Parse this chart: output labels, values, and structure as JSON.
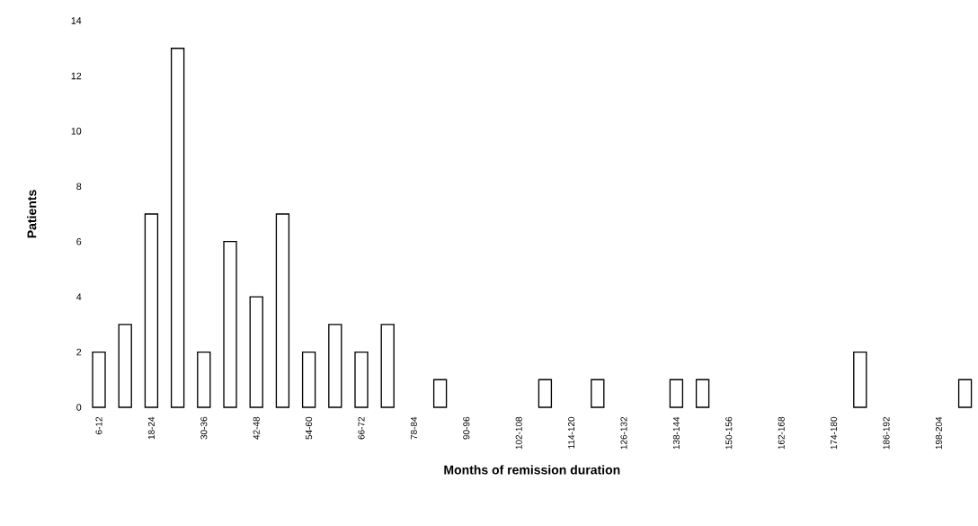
{
  "chart_data": {
    "type": "bar",
    "xlabel": "Months of remission duration",
    "ylabel": "Patients",
    "categories": [
      "6-12",
      null,
      "18-24",
      null,
      "30-36",
      null,
      "42-48",
      null,
      "54-60",
      null,
      "66-72",
      null,
      "78-84",
      null,
      "90-96",
      null,
      "102-108",
      null,
      "114-120",
      null,
      "126-132",
      null,
      "138-144",
      null,
      "150-156",
      null,
      "162-168",
      null,
      "174-180",
      null,
      "186-192",
      null,
      "198-204",
      null
    ],
    "values": [
      2,
      3,
      7,
      13,
      2,
      6,
      4,
      7,
      2,
      3,
      2,
      3,
      null,
      1,
      null,
      null,
      null,
      1,
      null,
      1,
      null,
      null,
      1,
      1,
      null,
      null,
      null,
      null,
      null,
      2,
      null,
      null,
      null,
      1
    ],
    "color": "#ffffff",
    "ylim": [
      0,
      14
    ],
    "yticks": [
      0,
      2,
      4,
      6,
      8,
      10,
      12,
      14
    ]
  }
}
